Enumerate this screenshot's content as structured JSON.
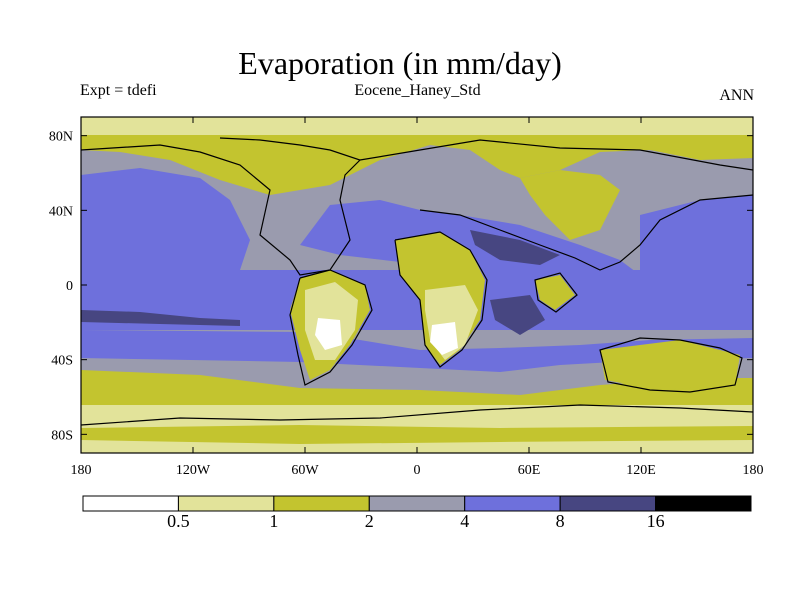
{
  "header": {
    "title": "Evaporation (in mm/day)",
    "left": "Expt = tdefi",
    "center": "Eocene_Haney_Std",
    "right": "ANN"
  },
  "chart_data": {
    "type": "heatmap",
    "title": "Evaporation (in mm/day)",
    "xlabel": "",
    "ylabel": "",
    "x_ticks": [
      "180",
      "120W",
      "60W",
      "0",
      "60E",
      "120E",
      "180"
    ],
    "y_ticks": [
      "80N",
      "40N",
      "0",
      "40S",
      "80S"
    ],
    "xlim": [
      -180,
      180
    ],
    "ylim": [
      -90,
      90
    ],
    "levels": [
      0.5,
      1,
      2,
      4,
      8,
      16
    ],
    "level_labels": [
      "0.5",
      "1",
      "2",
      "4",
      "8",
      "16"
    ],
    "colors": [
      "#ffffff",
      "#e2e39a",
      "#c3c42f",
      "#9a9bae",
      "#6e70dc",
      "#474681",
      "#000000"
    ],
    "color_bar": "horizontal, below map"
  }
}
